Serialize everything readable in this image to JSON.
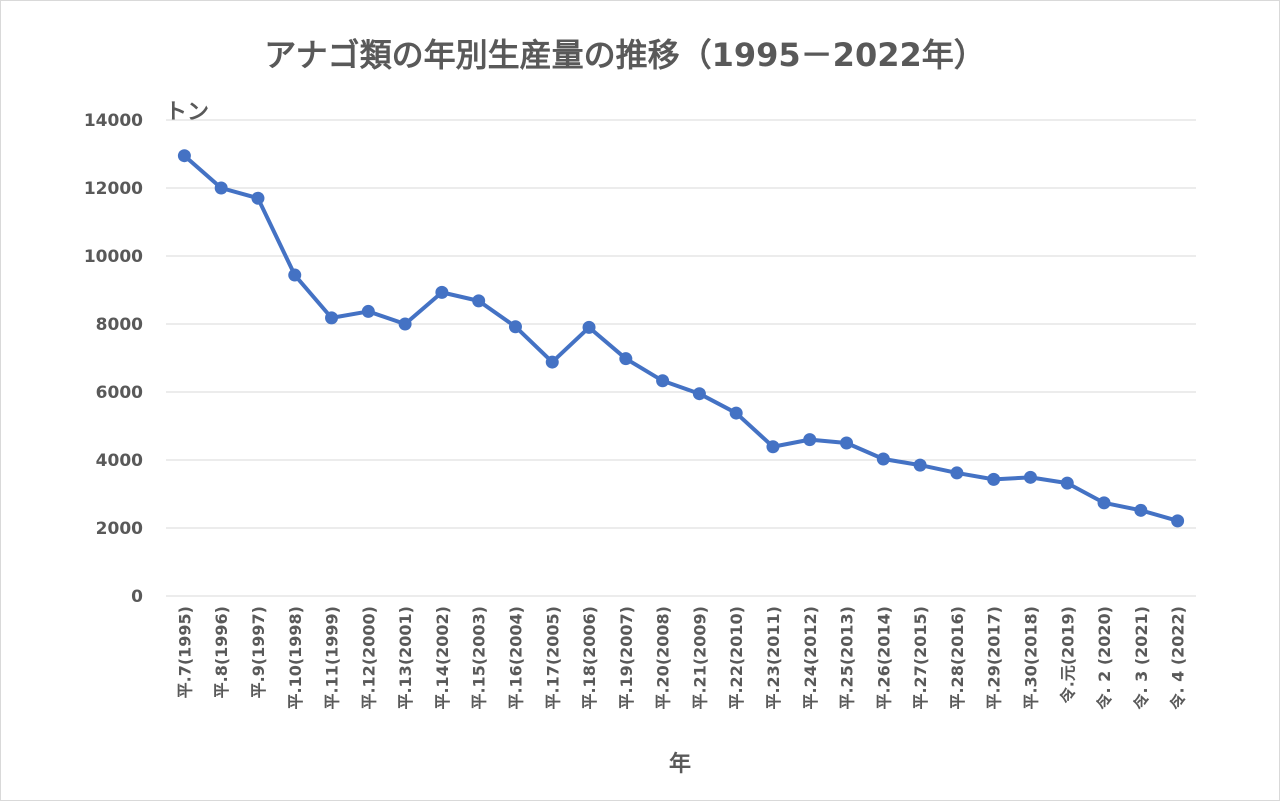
{
  "chart_data": {
    "type": "line",
    "title": "アナゴ類の年別生産量の推移（1995－2022年）",
    "xlabel": "年",
    "ylabel": "トン",
    "ylim": [
      0,
      14000
    ],
    "yticks": [
      "0",
      "2000",
      "4000",
      "6000",
      "8000",
      "10000",
      "12000",
      "14000"
    ],
    "grid": true,
    "categories": [
      "平.7(1995)",
      "平.8(1996)",
      "平.9(1997)",
      "平.10(1998)",
      "平.11(1999)",
      "平.12(2000)",
      "平.13(2001)",
      "平.14(2002)",
      "平.15(2003)",
      "平.16(2004)",
      "平.17(2005)",
      "平.18(2006)",
      "平.19(2007)",
      "平.20(2008)",
      "平.21(2009)",
      "平.22(2010)",
      "平.23(2011)",
      "平.24(2012)",
      "平.25(2013)",
      "平.26(2014)",
      "平.27(2015)",
      "平.28(2016)",
      "平.29(2017)",
      "平.30(2018)",
      "令.元(2019)",
      "令. 2 (2020)",
      "令. 3 (2021)",
      "令. 4 (2022)"
    ],
    "series": [
      {
        "values": [
          12950,
          12000,
          11700,
          9440,
          8180,
          8370,
          8000,
          8930,
          8680,
          7920,
          6880,
          7900,
          6980,
          6330,
          5950,
          5380,
          4390,
          4600,
          4500,
          4030,
          3850,
          3620,
          3430,
          3490,
          3320,
          2740,
          2520,
          2210
        ],
        "color": "#4472C4"
      }
    ]
  }
}
